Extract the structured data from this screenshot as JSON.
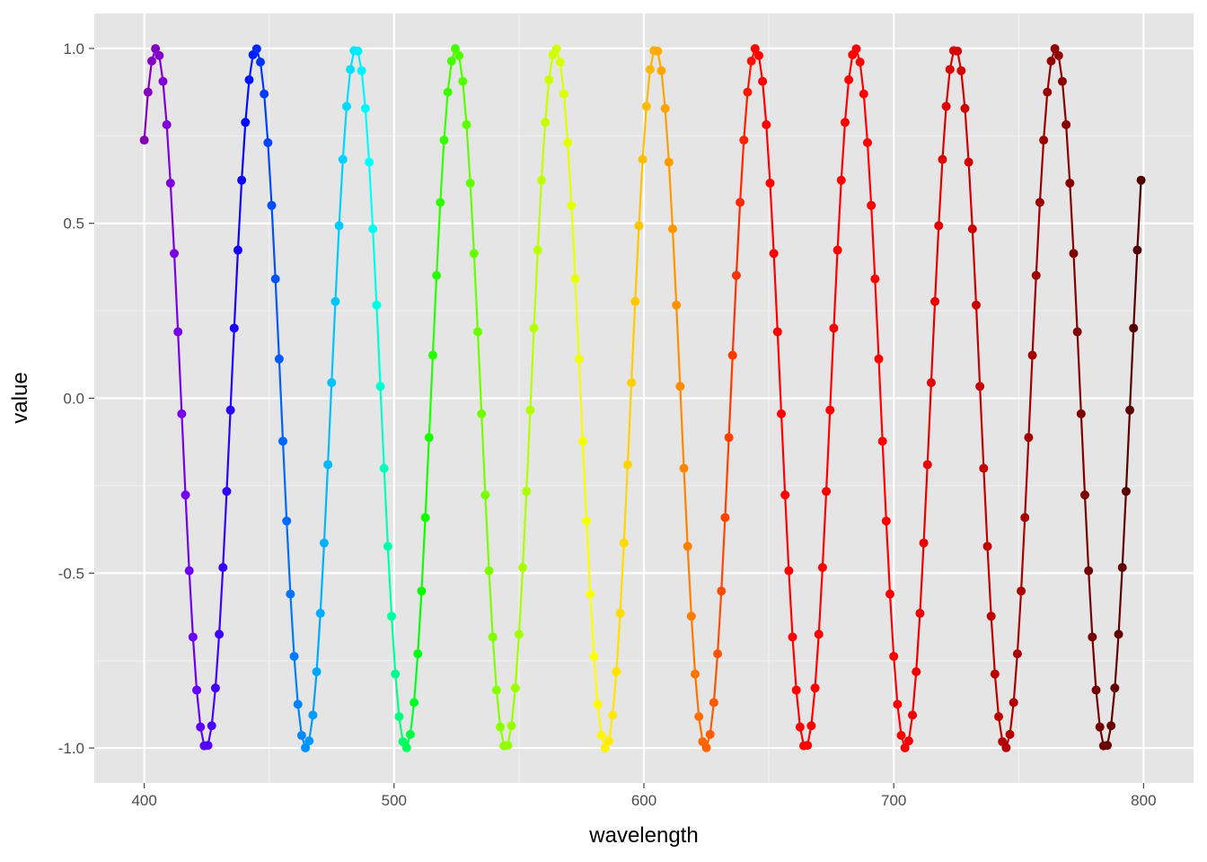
{
  "chart_data": {
    "type": "line",
    "title": "",
    "xlabel": "wavelength",
    "ylabel": "value",
    "xlim": [
      380,
      820
    ],
    "ylim": [
      -1.1,
      1.1
    ],
    "x_ticks": [
      400,
      500,
      600,
      700,
      800
    ],
    "x_tick_labels": [
      "400",
      "500",
      "600",
      "700",
      "800"
    ],
    "y_ticks": [
      -1.0,
      -0.5,
      0.0,
      0.5,
      1.0
    ],
    "y_tick_labels": [
      "-1.0",
      "-0.5",
      "0.0",
      "0.5",
      "1.0"
    ],
    "grid": true,
    "legend": "none",
    "series": [
      {
        "x_start": 400,
        "x_end": 800,
        "x_step": 1.5,
        "function": "sin(2*pi*wavelength/40 + 0.83)",
        "period": 40,
        "amplitude": 1.0,
        "points_markers": true,
        "color_by_wavelength": true
      }
    ]
  },
  "colors": {
    "panel_background": "#e5e5e5",
    "grid_major": "#ffffff",
    "grid_minor": "#f2f2f2",
    "tick_text": "#4d4d4d",
    "title_text": "#000000"
  }
}
